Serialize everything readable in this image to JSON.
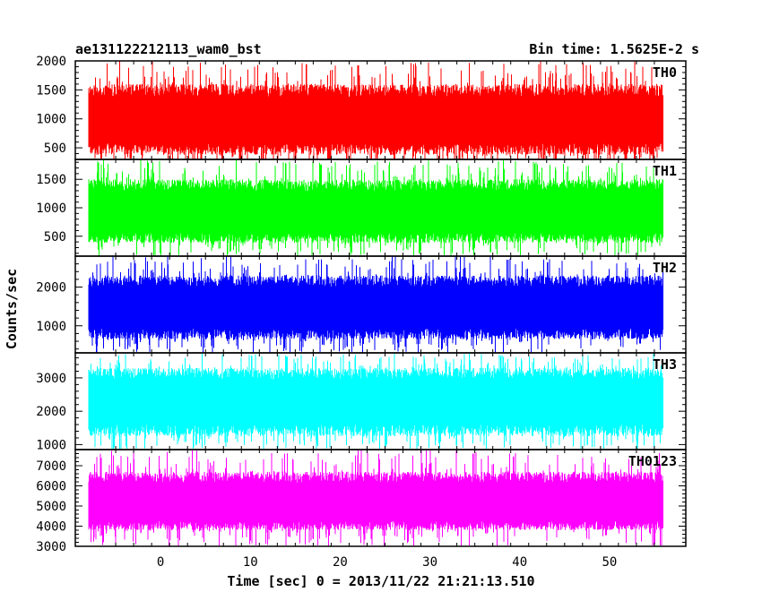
{
  "header": {
    "left_title": "ae131122212113_wam0_bst",
    "right_title": "Bin time: 1.5625E-2 s"
  },
  "axes": {
    "xlabel": "Time [sec] 0 = 2013/11/22 21:21:13.510",
    "ylabel": "Counts/sec"
  },
  "chart_data": {
    "type": "line",
    "title": "ae131122212113_wam0_bst",
    "subtitle": "Bin time: 1.5625E-2 s",
    "xlabel": "Time [sec] 0 = 2013/11/22 21:21:13.510",
    "ylabel": "Counts/sec",
    "xlim": [
      -9.5,
      58.5
    ],
    "data_xrange": [
      -8,
      56
    ],
    "xticks": [
      0,
      10,
      20,
      30,
      40,
      50
    ],
    "grid": false,
    "panels": [
      {
        "name": "TH0",
        "color": "#ff0000",
        "ylim": [
          300,
          2000
        ],
        "yticks": [
          500,
          1000,
          1500,
          2000
        ],
        "band": {
          "mean": 950,
          "low": 380,
          "high": 1600,
          "min": 150,
          "max": 2000
        }
      },
      {
        "name": "TH1",
        "color": "#00ff00",
        "ylim": [
          150,
          1850
        ],
        "yticks": [
          500,
          1000,
          1500
        ],
        "band": {
          "mean": 900,
          "low": 380,
          "high": 1500,
          "min": 150,
          "max": 1850
        }
      },
      {
        "name": "TH2",
        "color": "#0000ff",
        "ylim": [
          300,
          2800
        ],
        "yticks": [
          1000,
          2000
        ],
        "band": {
          "mean": 1450,
          "low": 650,
          "high": 2300,
          "min": 300,
          "max": 2800
        }
      },
      {
        "name": "TH3",
        "color": "#00ffff",
        "ylim": [
          850,
          3750
        ],
        "yticks": [
          1000,
          2000,
          3000
        ],
        "band": {
          "mean": 2300,
          "low": 1250,
          "high": 3300,
          "min": 850,
          "max": 3750
        }
      },
      {
        "name": "TH0123",
        "color": "#ff00ff",
        "ylim": [
          3000,
          7800
        ],
        "yticks": [
          3000,
          4000,
          5000,
          6000,
          7000
        ],
        "band": {
          "mean": 5100,
          "low": 3800,
          "high": 6700,
          "min": 3000,
          "max": 7800
        }
      }
    ]
  }
}
